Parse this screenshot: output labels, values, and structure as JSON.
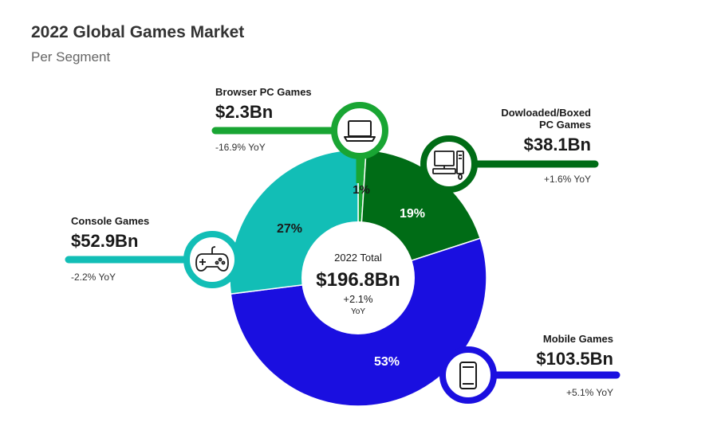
{
  "header": {
    "title": "2022 Global Games Market",
    "subtitle": "Per Segment"
  },
  "chart_data": {
    "type": "pie",
    "title": "2022 Global Games Market",
    "subtitle": "Per Segment",
    "total": {
      "label": "2022 Total",
      "value": "$196.8Bn",
      "change": "+2.1%",
      "change_unit": "YoY"
    },
    "series": [
      {
        "name": "Browser PC Games",
        "percent": 1,
        "percent_label": "1%",
        "value": "$2.3Bn",
        "yoy": "-16.9% YoY",
        "color": "#19a533",
        "icon": "laptop-icon"
      },
      {
        "name": "Dowloaded/Boxed PC Games",
        "name_lines": [
          "Dowloaded/Boxed",
          "PC Games"
        ],
        "percent": 19,
        "percent_label": "19%",
        "value": "$38.1Bn",
        "yoy": "+1.6% YoY",
        "color": "#006c16",
        "icon": "desktop-computer-icon"
      },
      {
        "name": "Mobile Games",
        "percent": 53,
        "percent_label": "53%",
        "value": "$103.5Bn",
        "yoy": "+5.1% YoY",
        "color": "#1a0fe0",
        "icon": "smartphone-icon"
      },
      {
        "name": "Console Games",
        "percent": 27,
        "percent_label": "27%",
        "value": "$52.9Bn",
        "yoy": "-2.2% YoY",
        "color": "#12beb6",
        "icon": "gamepad-icon"
      }
    ]
  }
}
